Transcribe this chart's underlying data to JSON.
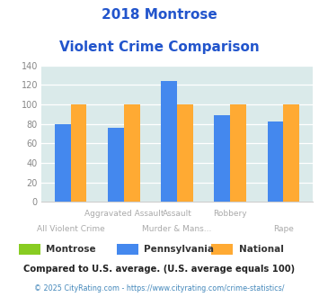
{
  "title_line1": "2018 Montrose",
  "title_line2": "Violent Crime Comparison",
  "categories": [
    "All Violent Crime",
    "Aggravated Assault",
    "Murder & Mans...",
    "Robbery",
    "Rape"
  ],
  "label_top": [
    "",
    "Aggravated Assault",
    "Assault",
    "Robbery",
    ""
  ],
  "label_bot": [
    "All Violent Crime",
    "",
    "Murder & Mans...",
    "",
    "Rape"
  ],
  "series": {
    "Montrose": [
      0,
      0,
      0,
      0,
      0
    ],
    "Pennsylvania": [
      80,
      76,
      124,
      89,
      82
    ],
    "National": [
      100,
      100,
      100,
      100,
      100
    ]
  },
  "colors": {
    "Montrose": "#88cc22",
    "Pennsylvania": "#4488ee",
    "National": "#ffaa33"
  },
  "ylim": [
    0,
    140
  ],
  "yticks": [
    0,
    20,
    40,
    60,
    80,
    100,
    120,
    140
  ],
  "plot_bg_color": "#daeaea",
  "title_color": "#2255cc",
  "legend_text_color": "#333333",
  "subtitle": "Compared to U.S. average. (U.S. average equals 100)",
  "subtitle_color": "#222222",
  "footer_left": "© 2025 CityRating.com - ",
  "footer_link": "https://www.cityrating.com/crime-statistics/",
  "footer_color": "#aaaaaa",
  "footer_link_color": "#4488bb",
  "tick_label_color": "#888888",
  "xlabel_color": "#aaaaaa"
}
